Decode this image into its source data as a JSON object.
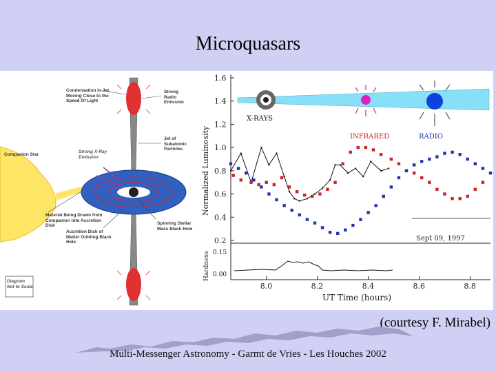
{
  "slide": {
    "title": "Microquasars",
    "credit": "(courtesy F. Mirabel)",
    "footer": "Multi-Messenger Astronomy  -  Garmt de Vries  -  Les Houches 2002"
  },
  "diagram": {
    "labels": {
      "condensation": "Condensation in Jet, Moving Close to the Speed Of Light",
      "strong_radio": "Strong Radio Emission",
      "jet": "Jet of Subatomic Particles",
      "companion": "Companion Star",
      "xray": "Strong X-Ray Emission",
      "material": "Material Being Drawn from Companion into Accretion Disk",
      "spinning": "Spinning Stellar Mass Black Hole",
      "disk": "Accretion Disk of Matter Orbiting Black Hole",
      "scale": "Diagram Not to Scale"
    }
  },
  "plot": {
    "ylabel": "Normalized Luminosity",
    "ylabel2": "Hardness",
    "xlabel": "UT Time (hours)",
    "yticks": [
      "1.6",
      "1.4",
      "1.2",
      "1.0",
      "0.8",
      "0.6",
      "0.4",
      "0.2"
    ],
    "yticks2": [
      "0.15",
      "0.00"
    ],
    "xticks": [
      "8.0",
      "8.2",
      "8.4",
      "8.6",
      "8.8"
    ],
    "date": "Sept 09, 1997",
    "bands": {
      "xray": "X-RAYS",
      "ir": "INFRARED",
      "radio": "RADIO"
    }
  },
  "chart_data": {
    "type": "scatter",
    "title": "",
    "xlabel": "UT Time (hours)",
    "ylabel": "Normalized Luminosity",
    "xlim": [
      7.86,
      8.88
    ],
    "ylim": [
      0.2,
      1.6
    ],
    "series": [
      {
        "name": "X-RAYS",
        "color": "#111111",
        "x": [
          7.86,
          7.9,
          7.94,
          7.98,
          8.01,
          8.04,
          8.07,
          8.09,
          8.11,
          8.13,
          8.16,
          8.19,
          8.22,
          8.25,
          8.27,
          8.29,
          8.32,
          8.35,
          8.38,
          8.41,
          8.45,
          8.48
        ],
        "y": [
          0.8,
          0.95,
          0.7,
          1.0,
          0.85,
          0.95,
          0.75,
          0.62,
          0.56,
          0.54,
          0.56,
          0.6,
          0.65,
          0.72,
          0.85,
          0.85,
          0.78,
          0.82,
          0.75,
          0.88,
          0.8,
          0.82
        ]
      },
      {
        "name": "INFRARED",
        "color": "#cc2222",
        "x": [
          7.87,
          7.9,
          7.94,
          7.97,
          8.0,
          8.03,
          8.06,
          8.09,
          8.12,
          8.15,
          8.18,
          8.21,
          8.24,
          8.27,
          8.3,
          8.33,
          8.36,
          8.39,
          8.42,
          8.45,
          8.49,
          8.52,
          8.55,
          8.58,
          8.61,
          8.64,
          8.67,
          8.7,
          8.73,
          8.76,
          8.79,
          8.82,
          8.85
        ],
        "y": [
          0.76,
          0.72,
          0.7,
          0.68,
          0.7,
          0.68,
          0.74,
          0.66,
          0.62,
          0.59,
          0.58,
          0.6,
          0.64,
          0.7,
          0.86,
          0.96,
          1.0,
          1.0,
          0.98,
          0.94,
          0.9,
          0.86,
          0.8,
          0.78,
          0.74,
          0.7,
          0.64,
          0.6,
          0.56,
          0.56,
          0.58,
          0.64,
          0.7
        ]
      },
      {
        "name": "RADIO",
        "color": "#2233aa",
        "x": [
          7.86,
          7.89,
          7.92,
          7.95,
          7.98,
          8.01,
          8.04,
          8.07,
          8.1,
          8.13,
          8.16,
          8.19,
          8.22,
          8.25,
          8.28,
          8.31,
          8.34,
          8.37,
          8.4,
          8.43,
          8.46,
          8.49,
          8.52,
          8.55,
          8.58,
          8.61,
          8.64,
          8.67,
          8.7,
          8.73,
          8.76,
          8.79,
          8.82,
          8.85,
          8.88
        ],
        "y": [
          0.86,
          0.82,
          0.78,
          0.72,
          0.66,
          0.6,
          0.55,
          0.5,
          0.46,
          0.42,
          0.38,
          0.35,
          0.31,
          0.27,
          0.26,
          0.29,
          0.33,
          0.38,
          0.44,
          0.5,
          0.58,
          0.66,
          0.74,
          0.8,
          0.85,
          0.88,
          0.9,
          0.92,
          0.95,
          0.96,
          0.94,
          0.9,
          0.86,
          0.82,
          0.78
        ]
      }
    ]
  }
}
